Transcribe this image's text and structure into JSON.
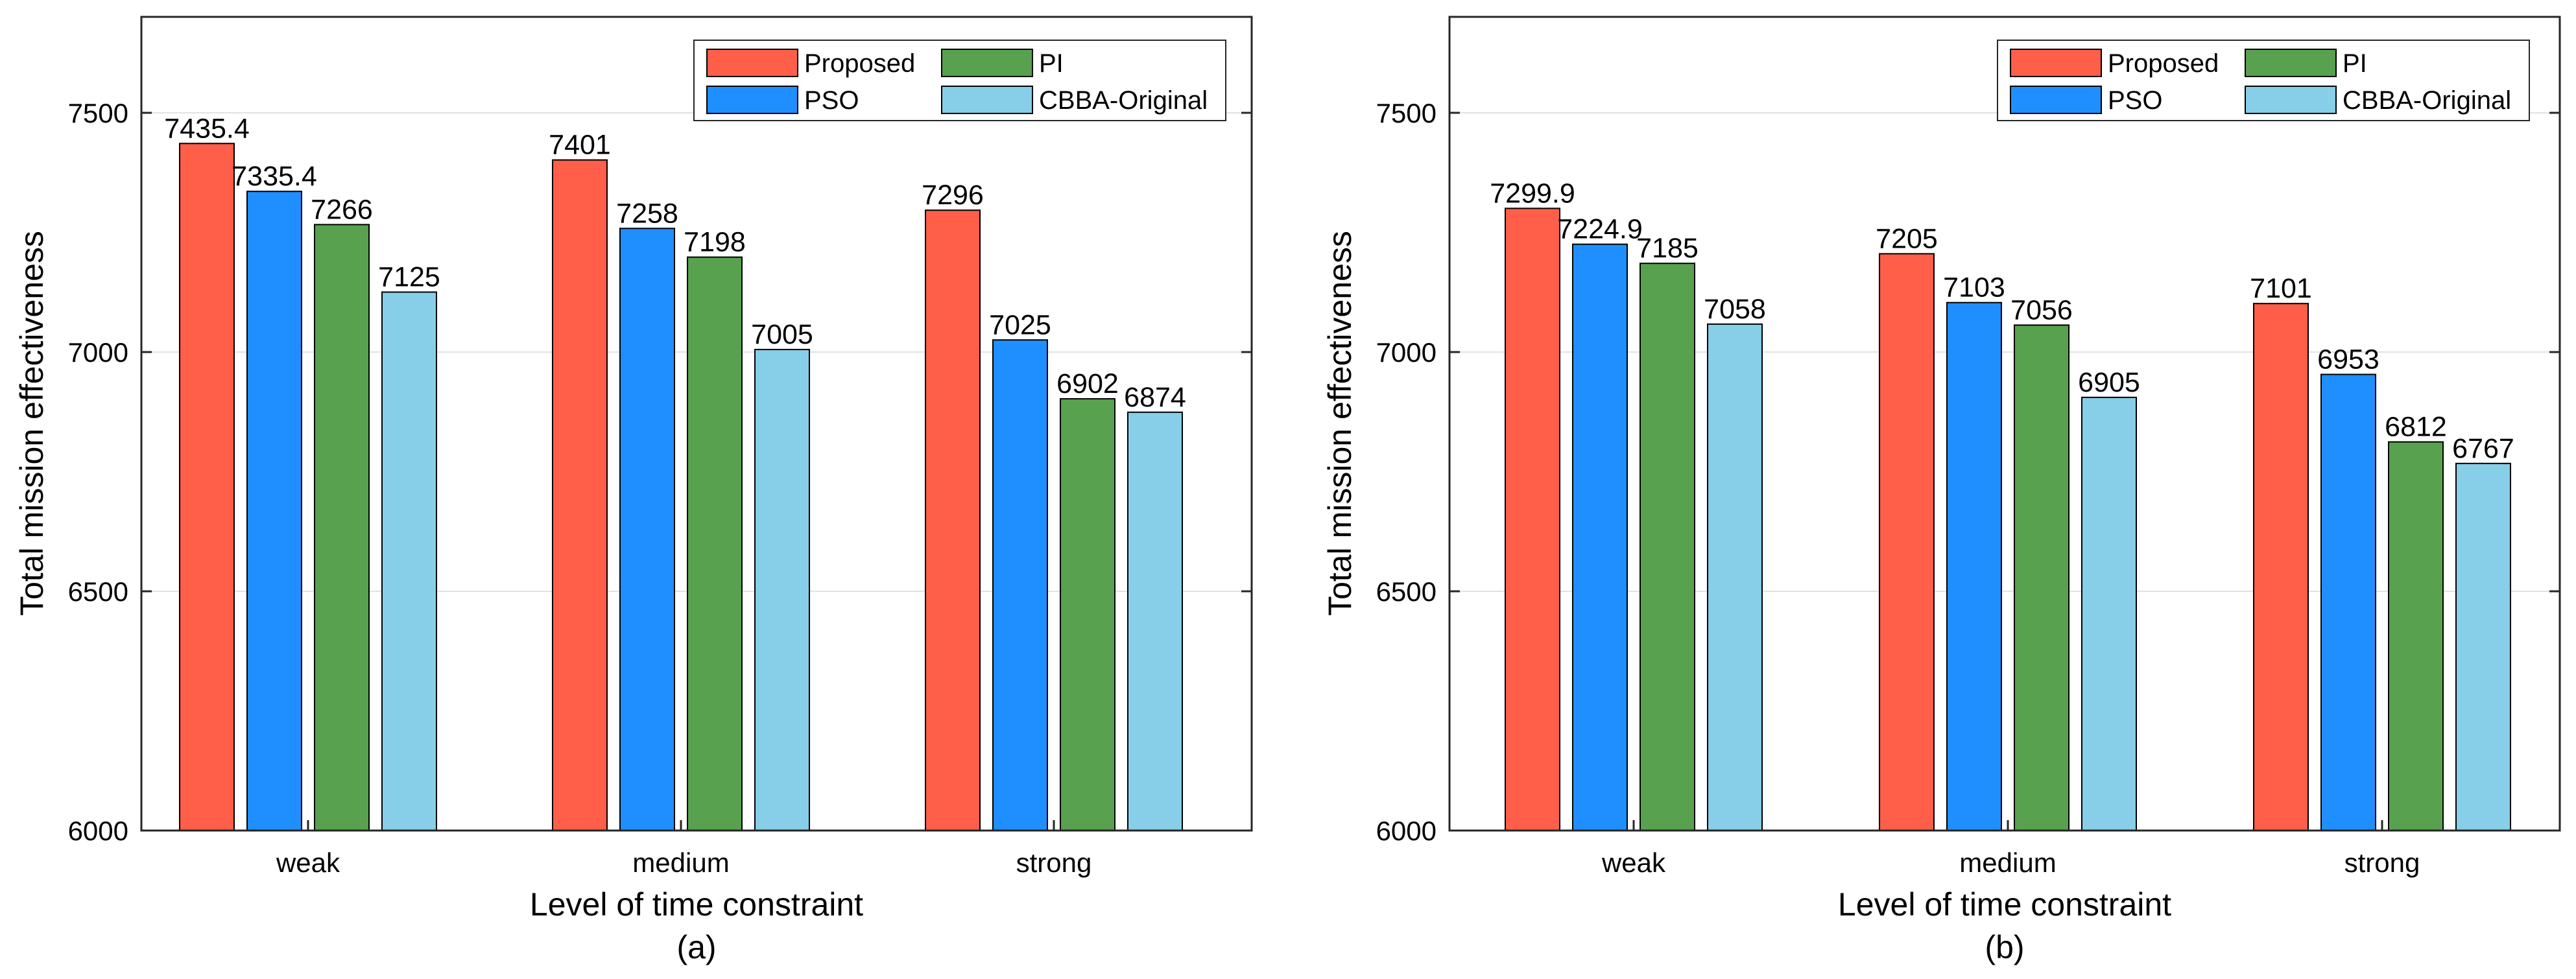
{
  "chart_data": [
    {
      "type": "bar",
      "caption": "(a)",
      "categories": [
        "weak",
        "medium",
        "strong"
      ],
      "series": [
        {
          "name": "Proposed",
          "color": "#FF5E48",
          "values": [
            7435.4,
            7401,
            7296
          ],
          "labels": [
            "7435.4",
            "7401",
            "7296"
          ]
        },
        {
          "name": "PSO",
          "color": "#1F8FFF",
          "values": [
            7335.4,
            7258,
            7025
          ],
          "labels": [
            "7335.4",
            "7258",
            "7025"
          ]
        },
        {
          "name": "PI",
          "color": "#58A14E",
          "values": [
            7266,
            7198,
            6902
          ],
          "labels": [
            "7266",
            "7198",
            "6902"
          ]
        },
        {
          "name": "CBBA-Original",
          "color": "#87CEE8",
          "values": [
            7125,
            7005,
            6874
          ],
          "labels": [
            "7125",
            "7005",
            "6874"
          ]
        }
      ],
      "xlabel": "Level of time constraint",
      "ylabel": "Total mission effectiveness",
      "ylim": [
        6000,
        7700
      ],
      "yticks": [
        6000,
        6500,
        7000,
        7500
      ],
      "grid": "y",
      "legend_position": "top-right"
    },
    {
      "type": "bar",
      "caption": "(b)",
      "categories": [
        "weak",
        "medium",
        "strong"
      ],
      "series": [
        {
          "name": "Proposed",
          "color": "#FF5E48",
          "values": [
            7299.9,
            7205,
            7101
          ],
          "labels": [
            "7299.9",
            "7205",
            "7101"
          ]
        },
        {
          "name": "PSO",
          "color": "#1F8FFF",
          "values": [
            7224.9,
            7103,
            6953
          ],
          "labels": [
            "7224.9",
            "7103",
            "6953"
          ]
        },
        {
          "name": "PI",
          "color": "#58A14E",
          "values": [
            7185,
            7056,
            6812
          ],
          "labels": [
            "7185",
            "7056",
            "6812"
          ]
        },
        {
          "name": "CBBA-Original",
          "color": "#87CEE8",
          "values": [
            7058,
            6905,
            6767
          ],
          "labels": [
            "7058",
            "6905",
            "6767"
          ]
        }
      ],
      "xlabel": "Level of time constraint",
      "ylabel": "Total mission effectiveness",
      "ylim": [
        6000,
        7700
      ],
      "yticks": [
        6000,
        6500,
        7000,
        7500
      ],
      "grid": "y",
      "legend_position": "top-right"
    }
  ]
}
